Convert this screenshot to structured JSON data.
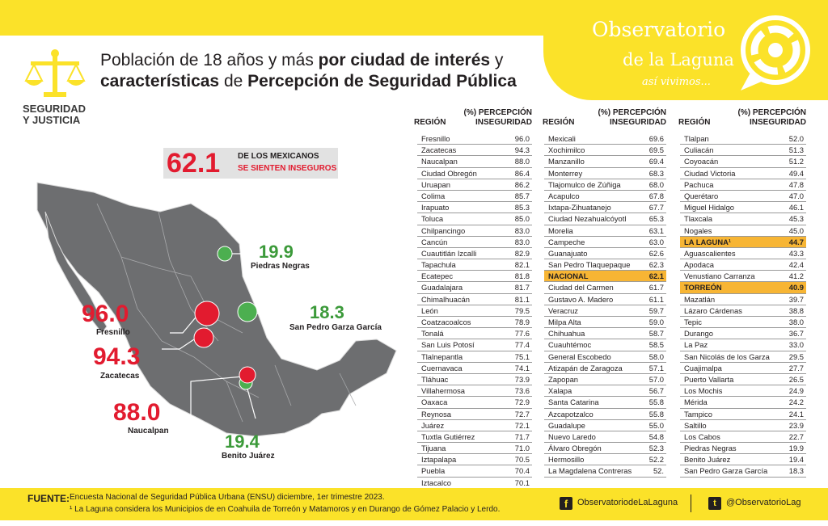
{
  "header": {
    "title_part1": "Población de 18 años y más ",
    "title_bold1": "por ciudad de interés",
    "title_part2": " y",
    "title_bold2": "características",
    "title_part3": " de ",
    "title_bold3": "Percepción de Seguridad Pública",
    "section_line1": "SEGURIDAD",
    "section_line2": "Y JUSTICIA"
  },
  "brand": {
    "line1": "Observatorio",
    "line2": "de la Laguna",
    "line3": "así vivimos..."
  },
  "stat": {
    "value": "62.1",
    "line1": "DE LOS MEXICANOS",
    "line2": "SE SIENTEN INSEGUROS"
  },
  "map_labels": [
    {
      "value": "96.0",
      "city": "Fresnillo"
    },
    {
      "value": "94.3",
      "city": "Zacatecas"
    },
    {
      "value": "88.0",
      "city": "Naucalpan"
    },
    {
      "value": "19.9",
      "city": "Piedras Negras"
    },
    {
      "value": "18.3",
      "city": "San Pedro Garza García"
    },
    {
      "value": "19.4",
      "city": "Benito Juárez"
    }
  ],
  "table_headers": {
    "region": "REGIÓN",
    "pct_line1": "(%) PERCEPCIÓN",
    "pct_line2": "INSEGURIDAD"
  },
  "tables": [
    [
      {
        "c": "Fresnillo",
        "v": "96.0"
      },
      {
        "c": "Zacatecas",
        "v": "94.3"
      },
      {
        "c": "Naucalpan",
        "v": "88.0"
      },
      {
        "c": "Ciudad Obregón",
        "v": "86.4"
      },
      {
        "c": "Uruapan",
        "v": "86.2"
      },
      {
        "c": "Colima",
        "v": "85.7"
      },
      {
        "c": "Irapuato",
        "v": "85.3"
      },
      {
        "c": "Toluca",
        "v": "85.0"
      },
      {
        "c": "Chilpancingo",
        "v": "83.0"
      },
      {
        "c": "Cancún",
        "v": "83.0"
      },
      {
        "c": "Cuautitlán Izcalli",
        "v": "82.9"
      },
      {
        "c": "Tapachula",
        "v": "82.1"
      },
      {
        "c": "Ecatepec",
        "v": "81.8"
      },
      {
        "c": "Guadalajara",
        "v": "81.7"
      },
      {
        "c": "Chimalhuacán",
        "v": "81.1"
      },
      {
        "c": "León",
        "v": "79.5"
      },
      {
        "c": "Coatzacoalcos",
        "v": "78.9"
      },
      {
        "c": "Tonalá",
        "v": "77.6"
      },
      {
        "c": "San Luis Potosí",
        "v": "77.4"
      },
      {
        "c": "Tlalnepantla",
        "v": "75.1"
      },
      {
        "c": "Cuernavaca",
        "v": "74.1"
      },
      {
        "c": "Tláhuac",
        "v": "73.9"
      },
      {
        "c": "Villahermosa",
        "v": "73.6"
      },
      {
        "c": "Oaxaca",
        "v": "72.9"
      },
      {
        "c": "Reynosa",
        "v": "72.7"
      },
      {
        "c": "Juárez",
        "v": "72.1"
      },
      {
        "c": "Tuxtla Gutiérrez",
        "v": "71.7"
      },
      {
        "c": "Tijuana",
        "v": "71.0"
      },
      {
        "c": "Iztapalapa",
        "v": "70.5"
      },
      {
        "c": "Puebla",
        "v": "70.4"
      },
      {
        "c": "Iztacalco",
        "v": "70.1"
      }
    ],
    [
      {
        "c": "Mexicali",
        "v": "69.6"
      },
      {
        "c": "Xochimilco",
        "v": "69.5"
      },
      {
        "c": "Manzanillo",
        "v": "69.4"
      },
      {
        "c": "Monterrey",
        "v": "68.3"
      },
      {
        "c": "Tlajomulco de Zúñiga",
        "v": "68.0"
      },
      {
        "c": "Acapulco",
        "v": "67.8"
      },
      {
        "c": "Ixtapa-Zihuatanejo",
        "v": "67.7"
      },
      {
        "c": "Ciudad Nezahualcóyotl",
        "v": "65.3"
      },
      {
        "c": "Morelia",
        "v": "63.1"
      },
      {
        "c": "Campeche",
        "v": "63.0"
      },
      {
        "c": "Guanajuato",
        "v": "62.6"
      },
      {
        "c": "San Pedro Tlaquepaque",
        "v": "62.3"
      },
      {
        "c": "NACIONAL",
        "v": "62.1",
        "hl": true
      },
      {
        "c": "Ciudad del Carmen",
        "v": "61.7"
      },
      {
        "c": "Gustavo A. Madero",
        "v": "61.1"
      },
      {
        "c": "Veracruz",
        "v": "59.7"
      },
      {
        "c": "Milpa Alta",
        "v": "59.0"
      },
      {
        "c": "Chihuahua",
        "v": "58.7"
      },
      {
        "c": "Cuauhtémoc",
        "v": "58.5"
      },
      {
        "c": "General Escobedo",
        "v": "58.0"
      },
      {
        "c": "Atizapán de Zaragoza",
        "v": "57.1"
      },
      {
        "c": "Zapopan",
        "v": "57.0"
      },
      {
        "c": "Xalapa",
        "v": "56.7"
      },
      {
        "c": "Santa Catarina",
        "v": "55.8"
      },
      {
        "c": "Azcapotzalco",
        "v": "55.8"
      },
      {
        "c": "Guadalupe",
        "v": "55.0"
      },
      {
        "c": "Nuevo Laredo",
        "v": "54.8"
      },
      {
        "c": "Álvaro Obregón",
        "v": "52.3"
      },
      {
        "c": "Hermosillo",
        "v": "52.2"
      },
      {
        "c": "La Magdalena Contreras",
        "v": "52."
      }
    ],
    [
      {
        "c": "Tlalpan",
        "v": "52.0"
      },
      {
        "c": "Culiacán",
        "v": "51.3"
      },
      {
        "c": "Coyoacán",
        "v": "51.2"
      },
      {
        "c": "Ciudad Victoria",
        "v": "49.4"
      },
      {
        "c": "Pachuca",
        "v": "47.8"
      },
      {
        "c": "Querétaro",
        "v": "47.0"
      },
      {
        "c": "Miguel Hidalgo",
        "v": "46.1"
      },
      {
        "c": "Tlaxcala",
        "v": "45.3"
      },
      {
        "c": "Nogales",
        "v": "45.0"
      },
      {
        "c": "LA LAGUNA¹",
        "v": "44.7",
        "hl": true
      },
      {
        "c": "Aguascalientes",
        "v": "43.3"
      },
      {
        "c": "Apodaca",
        "v": "42.4"
      },
      {
        "c": "Venustiano Carranza",
        "v": "41.2"
      },
      {
        "c": "TORREÓN",
        "v": "40.9",
        "hl": true
      },
      {
        "c": "Mazatlán",
        "v": "39.7"
      },
      {
        "c": "Lázaro Cárdenas",
        "v": "38.8"
      },
      {
        "c": "Tepic",
        "v": "38.0"
      },
      {
        "c": "Durango",
        "v": "36.7"
      },
      {
        "c": "La Paz",
        "v": "33.0"
      },
      {
        "c": "San Nicolás de los Garza",
        "v": "29.5"
      },
      {
        "c": "Cuajimalpa",
        "v": "27.7"
      },
      {
        "c": "Puerto Vallarta",
        "v": "26.5"
      },
      {
        "c": "Los Mochis",
        "v": "24.9"
      },
      {
        "c": "Mérida",
        "v": "24.2"
      },
      {
        "c": "Tampico",
        "v": "24.1"
      },
      {
        "c": "Saltillo",
        "v": "23.9"
      },
      {
        "c": "Los Cabos",
        "v": "22.7"
      },
      {
        "c": "Piedras Negras",
        "v": "19.9"
      },
      {
        "c": "Benito Juárez",
        "v": "19.4"
      },
      {
        "c": "San Pedro Garza García",
        "v": "18.3"
      }
    ]
  ],
  "footer": {
    "label": "FUENTE:",
    "line1": "Encuesta Nacional de Seguridad Pública Urbana (ENSU) diciembre, 1er trimestre 2023.",
    "line2": "¹ La Laguna considera los Municipios de en Coahuila de Torreón y Matamoros y en Durango de Gómez Palacio y Lerdo.",
    "facebook": "ObservatoriodeLaLaguna",
    "twitter": "@ObservatorioLag"
  },
  "colors": {
    "accent_yellow": "#fbe229",
    "highlight_orange": "#f7b534",
    "red": "#e21b2f",
    "green": "#3c9a3a",
    "map_gray": "#6d6e70"
  }
}
